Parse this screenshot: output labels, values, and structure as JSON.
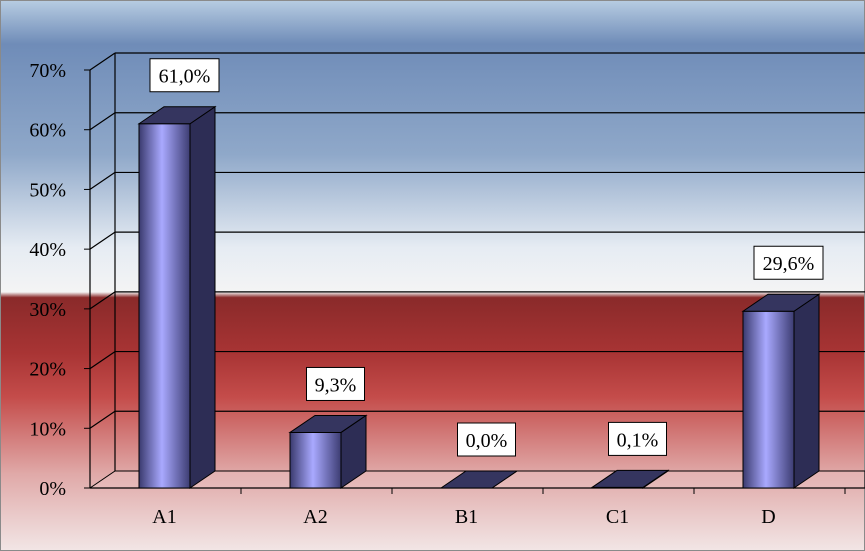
{
  "chart_data": {
    "type": "bar",
    "style": "3d-column",
    "categories": [
      "A1",
      "A2",
      "B1",
      "C1",
      "D"
    ],
    "values": [
      61.0,
      9.3,
      0.0,
      0.1,
      29.6
    ],
    "data_labels": [
      "61,0%",
      "9,3%",
      "0,0%",
      "0,1%",
      "29,6%"
    ],
    "ylim": [
      0,
      70
    ],
    "yticks": [
      0,
      10,
      20,
      30,
      40,
      50,
      60,
      70
    ],
    "ytick_labels": [
      "0%",
      "10%",
      "20%",
      "30%",
      "40%",
      "50%",
      "60%",
      "70%"
    ],
    "title": "",
    "xlabel": "",
    "ylabel": "",
    "grid": true,
    "legend": "none",
    "colors": {
      "bar_front_light": "#a9a9ff",
      "bar_front_dark": "#3a3a6e",
      "bar_side": "#2d2d55",
      "bar_top": "#35355f",
      "background_top": "#6f8fbd",
      "background_mid": "#f2f4f8",
      "background_red": "#c24a48",
      "background_bottom": "#f0e0e0"
    }
  }
}
